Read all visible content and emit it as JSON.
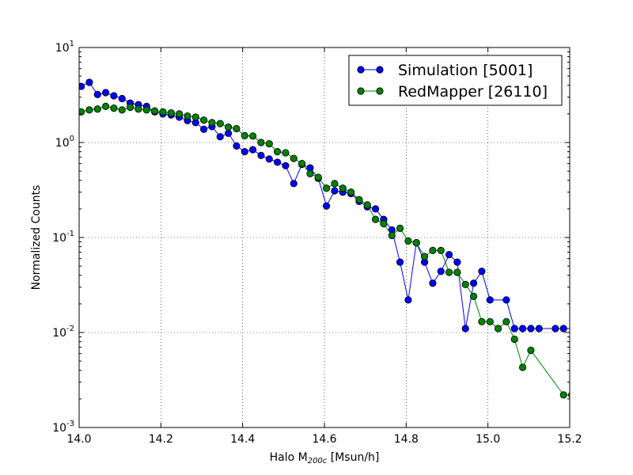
{
  "chart_data": {
    "type": "line",
    "title": "",
    "xlabel_prefix": "Halo M",
    "xlabel_sub": "200c",
    "xlabel_suffix": " [Msun/h]",
    "ylabel": "Normalized Counts",
    "xlim": [
      14.0,
      15.2
    ],
    "ylim": [
      0.001,
      10
    ],
    "yscale": "log",
    "grid": true,
    "legend_position": "top-right",
    "x_ticks": [
      "14.0",
      "14.2",
      "14.4",
      "14.6",
      "14.8",
      "15.0",
      "15.2"
    ],
    "y_ticks": [
      {
        "value": 0.001,
        "base": "10",
        "exp": "-3"
      },
      {
        "value": 0.01,
        "base": "10",
        "exp": "-2"
      },
      {
        "value": 0.1,
        "base": "10",
        "exp": "-1"
      },
      {
        "value": 1,
        "base": "10",
        "exp": "0"
      },
      {
        "value": 10,
        "base": "10",
        "exp": "1"
      }
    ],
    "series": [
      {
        "name": "Simulation [5001]",
        "color": "#0000ff",
        "points": [
          [
            14.005,
            3.9
          ],
          [
            14.025,
            4.3
          ],
          [
            14.045,
            3.2
          ],
          [
            14.065,
            3.35
          ],
          [
            14.085,
            3.1
          ],
          [
            14.105,
            2.9
          ],
          [
            14.125,
            2.6
          ],
          [
            14.145,
            2.5
          ],
          [
            14.165,
            2.4
          ],
          [
            14.185,
            2.1
          ],
          [
            14.205,
            2.0
          ],
          [
            14.225,
            1.95
          ],
          [
            14.245,
            1.85
          ],
          [
            14.265,
            1.7
          ],
          [
            14.285,
            1.62
          ],
          [
            14.305,
            1.38
          ],
          [
            14.325,
            1.47
          ],
          [
            14.345,
            1.15
          ],
          [
            14.365,
            1.25
          ],
          [
            14.385,
            0.92
          ],
          [
            14.405,
            0.8
          ],
          [
            14.425,
            0.84
          ],
          [
            14.445,
            0.73
          ],
          [
            14.465,
            0.67
          ],
          [
            14.485,
            0.62
          ],
          [
            14.505,
            0.57
          ],
          [
            14.525,
            0.37
          ],
          [
            14.545,
            0.59
          ],
          [
            14.565,
            0.54
          ],
          [
            14.585,
            0.42
          ],
          [
            14.605,
            0.215
          ],
          [
            14.625,
            0.31
          ],
          [
            14.645,
            0.3
          ],
          [
            14.665,
            0.29
          ],
          [
            14.685,
            0.24
          ],
          [
            14.705,
            0.21
          ],
          [
            14.725,
            0.2
          ],
          [
            14.745,
            0.155
          ],
          [
            14.765,
            0.12
          ],
          [
            14.785,
            0.055
          ],
          [
            14.805,
            0.022
          ],
          [
            14.825,
            0.088
          ],
          [
            14.845,
            0.055
          ],
          [
            14.865,
            0.033
          ],
          [
            14.885,
            0.044
          ],
          [
            14.905,
            0.066
          ],
          [
            14.925,
            0.055
          ],
          [
            14.945,
            0.011
          ],
          [
            14.965,
            0.033
          ],
          [
            14.985,
            0.044
          ],
          [
            15.005,
            0.022
          ],
          [
            15.045,
            0.022
          ],
          [
            15.065,
            0.011
          ],
          [
            15.085,
            0.011
          ],
          [
            15.105,
            0.011
          ],
          [
            15.125,
            0.011
          ],
          [
            15.165,
            0.011
          ],
          [
            15.185,
            0.011
          ],
          [
            15.265,
            0.011
          ]
        ]
      },
      {
        "name": "RedMapper [26110]",
        "color": "#008000",
        "points": [
          [
            14.005,
            2.1
          ],
          [
            14.025,
            2.2
          ],
          [
            14.045,
            2.25
          ],
          [
            14.065,
            2.4
          ],
          [
            14.085,
            2.3
          ],
          [
            14.105,
            2.2
          ],
          [
            14.125,
            2.35
          ],
          [
            14.145,
            2.25
          ],
          [
            14.165,
            2.2
          ],
          [
            14.185,
            2.15
          ],
          [
            14.205,
            2.1
          ],
          [
            14.225,
            2.05
          ],
          [
            14.245,
            2.0
          ],
          [
            14.265,
            1.9
          ],
          [
            14.285,
            1.85
          ],
          [
            14.305,
            1.72
          ],
          [
            14.325,
            1.62
          ],
          [
            14.345,
            1.58
          ],
          [
            14.365,
            1.45
          ],
          [
            14.385,
            1.4
          ],
          [
            14.405,
            1.18
          ],
          [
            14.425,
            1.17
          ],
          [
            14.445,
            1.0
          ],
          [
            14.465,
            0.97
          ],
          [
            14.485,
            0.8
          ],
          [
            14.505,
            0.78
          ],
          [
            14.525,
            0.68
          ],
          [
            14.545,
            0.6
          ],
          [
            14.565,
            0.47
          ],
          [
            14.585,
            0.43
          ],
          [
            14.605,
            0.33
          ],
          [
            14.625,
            0.37
          ],
          [
            14.645,
            0.33
          ],
          [
            14.665,
            0.3
          ],
          [
            14.685,
            0.25
          ],
          [
            14.705,
            0.22
          ],
          [
            14.725,
            0.155
          ],
          [
            14.745,
            0.14
          ],
          [
            14.765,
            0.105
          ],
          [
            14.785,
            0.125
          ],
          [
            14.805,
            0.092
          ],
          [
            14.825,
            0.088
          ],
          [
            14.845,
            0.063
          ],
          [
            14.865,
            0.073
          ],
          [
            14.885,
            0.073
          ],
          [
            14.905,
            0.043
          ],
          [
            14.925,
            0.043
          ],
          [
            14.945,
            0.032
          ],
          [
            14.965,
            0.024
          ],
          [
            14.985,
            0.013
          ],
          [
            15.005,
            0.013
          ],
          [
            15.025,
            0.011
          ],
          [
            15.045,
            0.013
          ],
          [
            15.065,
            0.0085
          ],
          [
            15.085,
            0.0043
          ],
          [
            15.105,
            0.0065
          ],
          [
            15.185,
            0.0022
          ],
          [
            15.205,
            0.0022
          ],
          [
            15.225,
            0.0022
          ]
        ]
      }
    ]
  }
}
